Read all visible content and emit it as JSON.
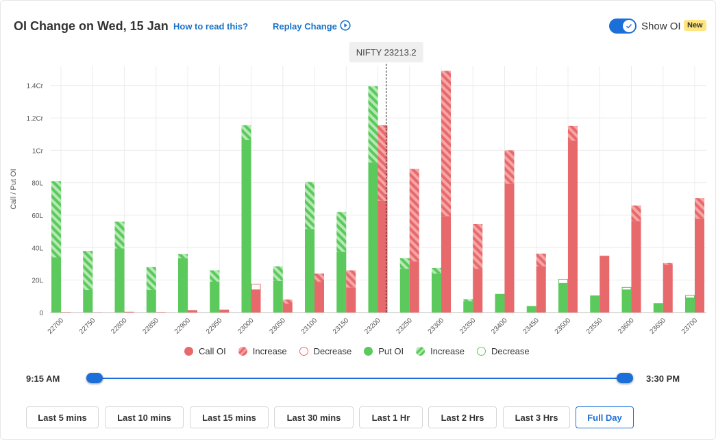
{
  "header": {
    "title": "OI Change on Wed, 15 Jan",
    "how_to_read": "How to read this?",
    "replay": "Replay Change",
    "toggle_label": "Show OI",
    "badge": "New"
  },
  "colors": {
    "call": "#e8696b",
    "call_hatch": "#f4a9a9",
    "put": "#5bc95b",
    "put_hatch": "#a8e3a8",
    "accent": "#1a6fd8"
  },
  "chart_data": {
    "type": "bar",
    "ylabel": "Call / Put OI",
    "ylim": [
      0,
      150
    ],
    "yticks": [
      0,
      20,
      40,
      60,
      80,
      100,
      120,
      140
    ],
    "ytick_labels": [
      "0",
      "20L",
      "40L",
      "60L",
      "80L",
      "1Cr",
      "1.2Cr",
      "1.4Cr"
    ],
    "spot_label": "NIFTY 23213.2",
    "spot_value": 23213.2,
    "categories": [
      "22700",
      "22750",
      "22800",
      "22850",
      "22900",
      "22950",
      "23000",
      "23050",
      "23100",
      "23150",
      "23200",
      "23250",
      "23300",
      "23350",
      "23400",
      "23450",
      "23500",
      "23550",
      "23600",
      "23650",
      "23700"
    ],
    "series": [
      {
        "name": "Call OI",
        "values": [
          0.3,
          0.2,
          0.5,
          0.3,
          1.5,
          1.8,
          14,
          5.5,
          19,
          15.5,
          69,
          31.5,
          59.5,
          27,
          79.5,
          28.5,
          106,
          35,
          56.5,
          29.5,
          58
        ]
      },
      {
        "name": "Increase",
        "values": [
          0,
          0,
          0,
          0,
          0,
          0,
          0,
          2.5,
          5,
          10.5,
          46.5,
          57,
          89.5,
          27.5,
          20.5,
          7.8,
          9,
          0,
          9.5,
          1,
          12.5
        ]
      },
      {
        "name": "Decrease",
        "values": [
          0,
          0,
          0,
          0,
          0,
          0,
          3.5,
          0,
          0,
          0,
          0,
          0,
          0,
          0,
          0,
          0,
          0,
          0,
          0,
          0,
          0
        ]
      },
      {
        "name": "Put OI",
        "values": [
          34,
          14,
          39.5,
          14,
          33.5,
          19,
          106.5,
          19.5,
          51.5,
          37.5,
          92.5,
          27,
          24,
          7,
          11.5,
          4,
          18,
          10.5,
          14,
          5.8,
          9
        ]
      },
      {
        "name": "Increase",
        "values": [
          47,
          24,
          16.5,
          14,
          2.5,
          7,
          9,
          9,
          29,
          24.5,
          47,
          6.5,
          3.5,
          1.2,
          0,
          0,
          0,
          0,
          0,
          0,
          0
        ]
      },
      {
        "name": "Decrease",
        "values": [
          0,
          0,
          0,
          0,
          0,
          0,
          0,
          0,
          0,
          0,
          0,
          0,
          0,
          0,
          0,
          0,
          2.5,
          0,
          1.5,
          0,
          1.5
        ]
      }
    ]
  },
  "slider": {
    "start_label": "9:15 AM",
    "end_label": "3:30 PM",
    "start_fraction": 0,
    "end_fraction": 1
  },
  "ranges": [
    "Last 5 mins",
    "Last 10 mins",
    "Last 15 mins",
    "Last 30 mins",
    "Last 1 Hr",
    "Last 2 Hrs",
    "Last 3 Hrs",
    "Full Day"
  ],
  "active_range": "Full Day"
}
